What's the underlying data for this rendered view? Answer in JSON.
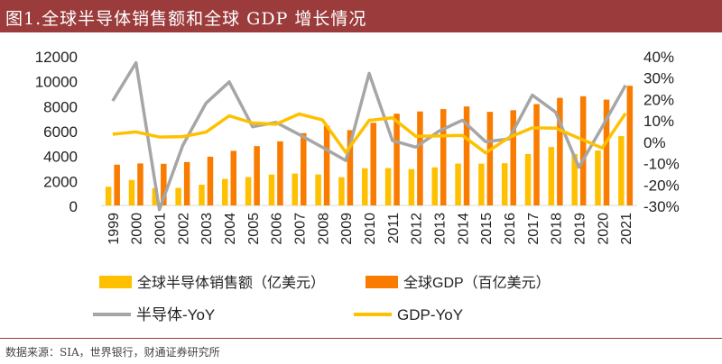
{
  "title": "图1.全球半导体销售额和全球 GDP 增长情况",
  "source": "数据来源：SIA，世界银行，财通证券研究所",
  "chart_data": {
    "type": "bar",
    "categories": [
      "1999",
      "2000",
      "2001",
      "2002",
      "2003",
      "2004",
      "2005",
      "2006",
      "2007",
      "2008",
      "2009",
      "2010",
      "2011",
      "2012",
      "2013",
      "2014",
      "2015",
      "2016",
      "2017",
      "2018",
      "2019",
      "2020",
      "2021"
    ],
    "series": [
      {
        "name": "全球半导体销售额（亿美元）",
        "kind": "bar",
        "axis": "left",
        "color": "#ffc000",
        "values": [
          1494,
          2044,
          1389,
          1407,
          1663,
          2130,
          2275,
          2477,
          2556,
          2486,
          2263,
          2983,
          2995,
          2916,
          3056,
          3358,
          3352,
          3389,
          4122,
          4688,
          4123,
          4404,
          5559
        ]
      },
      {
        "name": "全球GDP（百亿美元）",
        "kind": "bar",
        "axis": "left",
        "color": "#f97b00",
        "values": [
          3270,
          3370,
          3340,
          3480,
          3910,
          4380,
          4760,
          5140,
          5800,
          6380,
          6040,
          6630,
          7360,
          7540,
          7730,
          7940,
          7510,
          7640,
          8130,
          8630,
          8760,
          8490,
          9600
        ]
      },
      {
        "name": "半导体-YoY",
        "kind": "line",
        "axis": "right",
        "color": "#a6a6a6",
        "values": [
          18.9,
          36.8,
          -32,
          -2,
          17.8,
          27.8,
          6.8,
          8.9,
          3.2,
          -2.8,
          -9,
          31.8,
          0.4,
          -2.7,
          4.8,
          9.9,
          -0.2,
          1.1,
          21.6,
          13.7,
          -12.1,
          6.8,
          26.2
        ]
      },
      {
        "name": "GDP-YoY",
        "kind": "line",
        "axis": "right",
        "color": "#ffc000",
        "values": [
          3.3,
          4.4,
          2,
          2.2,
          4.3,
          11.9,
          8.6,
          8,
          12.8,
          10,
          -5.2,
          9.8,
          11,
          2.4,
          2.5,
          2.8,
          -5.4,
          1.8,
          6.3,
          6.2,
          1.5,
          -3.1,
          13.1
        ]
      }
    ],
    "yaxis_left": {
      "min": 0,
      "max": 12000,
      "ticks": [
        "0",
        "2000",
        "4000",
        "6000",
        "8000",
        "10000",
        "12000"
      ]
    },
    "yaxis_right": {
      "min": -30,
      "max": 40,
      "ticks": [
        "-30%",
        "-20%",
        "-10%",
        "0%",
        "10%",
        "20%",
        "30%",
        "40%"
      ]
    },
    "grid": false,
    "legend_position": "bottom"
  }
}
